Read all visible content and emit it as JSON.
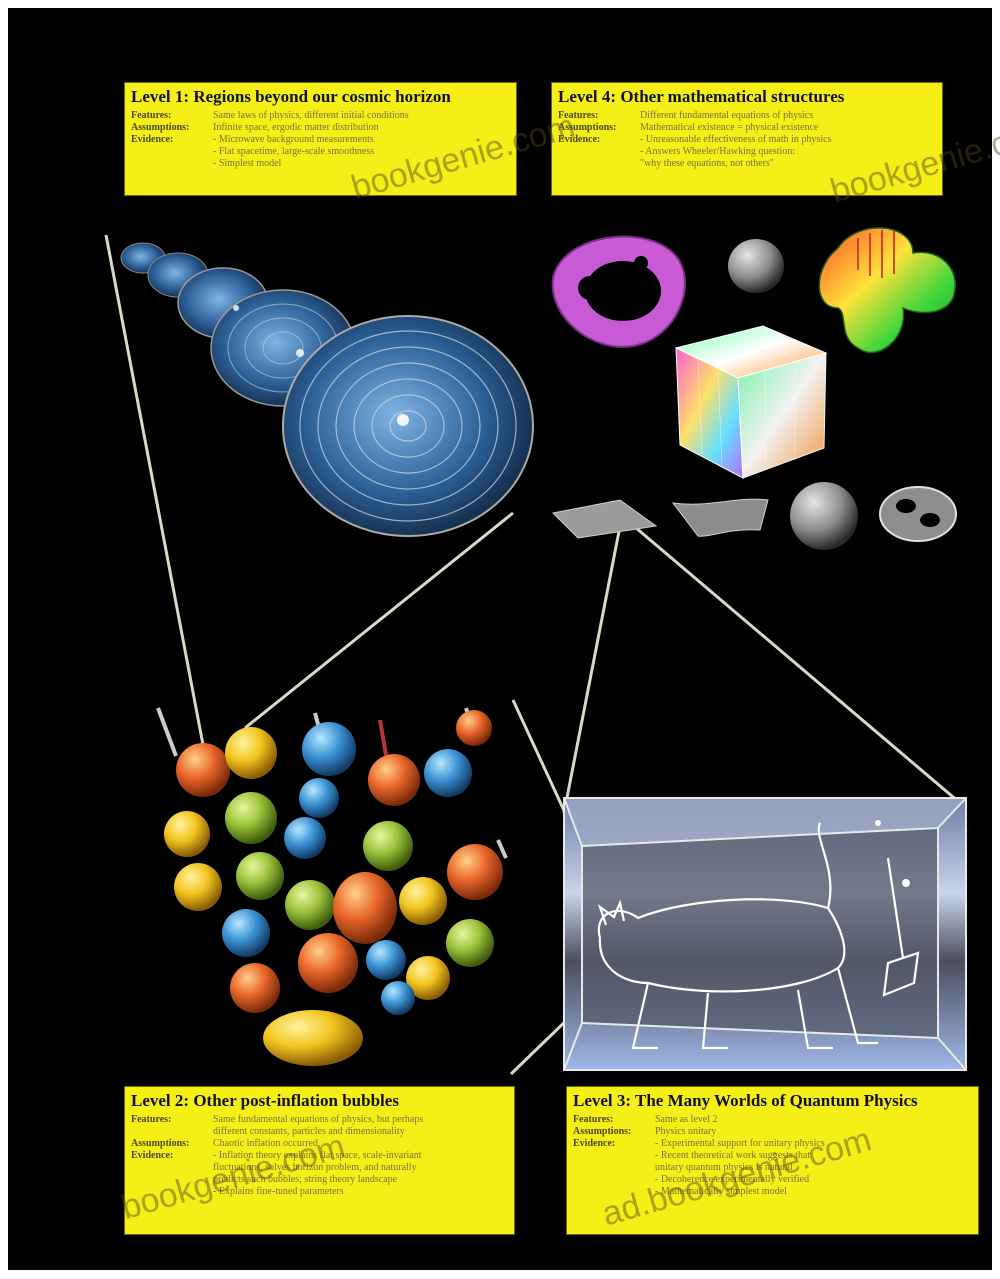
{
  "boxes": {
    "level1": {
      "title": "Level 1: Regions beyond our cosmic horizon",
      "rows": [
        {
          "k": "Features:",
          "v": "Same laws of physics, different initial conditions"
        },
        {
          "k": "Assumptions:",
          "v": "Infinite space, ergodic matter distribution"
        },
        {
          "k": "Evidence:",
          "v": "- Microwave background measurements"
        },
        {
          "k": "",
          "v": "- Flat spacetime, large-scale smoothness"
        },
        {
          "k": "",
          "v": "- Simplest model"
        }
      ]
    },
    "level4": {
      "title": "Level 4: Other mathematical structures",
      "rows": [
        {
          "k": "Features:",
          "v": "Different fundamental equations of physics"
        },
        {
          "k": "Assumptions:",
          "v": "Mathematical existence = physical existence"
        },
        {
          "k": "Evidence:",
          "v": "- Unreasonable effectiveness of math in physics"
        },
        {
          "k": "",
          "v": "- Answers Wheeler/Hawking question:"
        },
        {
          "k": "",
          "v": "\"why these equations, not others\""
        }
      ]
    },
    "level2": {
      "title": "Level 2: Other post-inflation bubbles",
      "rows": [
        {
          "k": "Features:",
          "v": "Same fundamental equations of physics, but perhaps"
        },
        {
          "k": "",
          "v": "different constants, particles and dimensionality"
        },
        {
          "k": "Assumptions:",
          "v": "Chaotic inflation occurred"
        },
        {
          "k": "Evidence:",
          "v": "- Inflation theory explains flat space, scale-invariant"
        },
        {
          "k": "",
          "v": "fluctuations, solves horizon problem, and naturally"
        },
        {
          "k": "",
          "v": "predicts such bubbles; string theory landscape"
        },
        {
          "k": "",
          "v": "- Explains fine-tuned parameters"
        }
      ]
    },
    "level3": {
      "title": "Level 3: The Many Worlds of Quantum Physics",
      "rows": [
        {
          "k": "Features:",
          "v": "Same as level 2"
        },
        {
          "k": "Assumptions:",
          "v": "Physics unitary"
        },
        {
          "k": "Evidence:",
          "v": "- Experimental support for unitary physics"
        },
        {
          "k": "",
          "v": "- Recent theoretical work suggests that"
        },
        {
          "k": "",
          "v": "unitary quantum physics is natural"
        },
        {
          "k": "",
          "v": "- Decoherence experimentally verified"
        },
        {
          "k": "",
          "v": "- Mathematically simplest model"
        }
      ]
    }
  },
  "watermarks": [
    "bookgenie.com",
    "bookgenie.c",
    "bookgenie.com",
    "ad.bookgenie.com"
  ],
  "colors": {
    "background": "#000000",
    "box": "#f6ee17",
    "lines": "#d9d9c6"
  },
  "icons": [
    "nested-universe-spheres",
    "fractal-ring-icon",
    "small-rock-icon",
    "deformed-blob-icon",
    "color-cube-icon",
    "flat-sheet-icon",
    "curved-sheet-icon",
    "sphere-icon",
    "pretzel-torus-icon",
    "bubble-cluster",
    "schrodinger-cat-box"
  ]
}
